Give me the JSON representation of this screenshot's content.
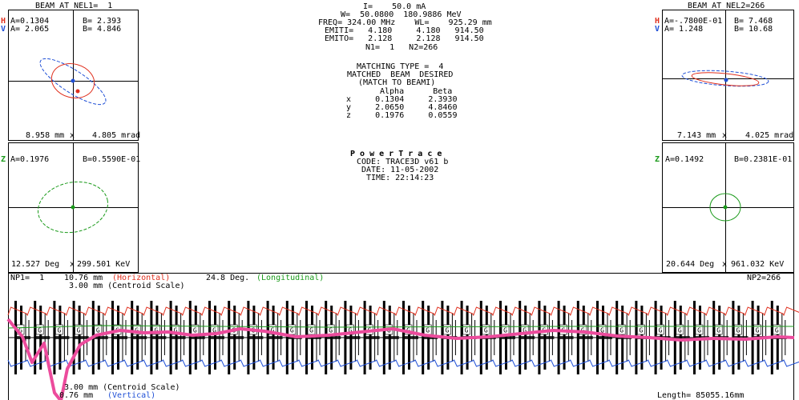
{
  "left_top": {
    "title": "BEAM AT NEL1=  1",
    "h_label": "H",
    "v_label": "V",
    "h_alpha": "A=0.1304",
    "h_beta": "B= 2.393",
    "v_alpha": "A= 2.065",
    "v_beta": "B= 4.846",
    "scale_x": "8.958 mm",
    "scale_y": "4.805 mrad"
  },
  "left_bottom": {
    "z_label": "Z",
    "z_alpha": "A=0.1976",
    "z_beta": "B=0.5590E-01",
    "scale_x": "12.527 Deg",
    "scale_y": "299.501 KeV"
  },
  "right_top": {
    "title": "BEAM AT NEL2=266",
    "h_label": "H",
    "v_label": "V",
    "h_alpha": "A=-.7800E-01",
    "h_beta": "B= 7.468",
    "v_alpha": "A= 1.248",
    "v_beta": "B= 10.68",
    "scale_x": "7.143 mm",
    "scale_y": "4.025 mrad"
  },
  "right_bottom": {
    "z_label": "Z",
    "z_alpha": "A=0.1492",
    "z_beta": "B=0.2381E-01",
    "scale_x": "20.644 Deg",
    "scale_y": "961.032 KeV"
  },
  "center": {
    "line1": "I=    50.0 mA",
    "line2": "W=  50.0800  180.9886 MeV",
    "line3": "FREQ= 324.00 MHz    WL=    925.29 mm",
    "line4": "EMITI=   4.180     4.180   914.50",
    "line5": "EMITO=   2.128     2.128   914.50",
    "line6": "N1=  1   N2=266",
    "match1": "MATCHING TYPE =  4",
    "match2": "MATCHED  BEAM  DESIRED",
    "match3": "(MATCH TO BEAMI)",
    "table_header": "Alpha      Beta",
    "row_x": "x     0.1304     2.3930",
    "row_y": "y     2.0650     4.8460",
    "row_z": "z     0.1976     0.0559",
    "brand": "P o w e r T r a c e",
    "code": "CODE: TRACE3D v61 b",
    "date": "DATE: 11-05-2002",
    "time": "TIME: 22:14:23"
  },
  "bottom": {
    "np1": "NP1=  1",
    "h_scale_val": "10.76 mm",
    "h_scale_name": "(Horizontal)",
    "long_val": "24.8 Deg.",
    "long_name": "(Longitudinal)",
    "centroid_top": "3.00 mm (Centroid Scale)",
    "np2": "NP2=266",
    "centroid_bottom": "3.00 mm (Centroid Scale)",
    "v_scale_val": "0.76 mm",
    "v_scale_name": "(Vertical)",
    "length": "Length= 85055.16mm",
    "element_label": "G"
  },
  "colors": {
    "horizontal": "#e0301e",
    "vertical": "#1f4fd6",
    "longitudinal": "#1a9a1a",
    "centroid": "#ec4b9c"
  }
}
